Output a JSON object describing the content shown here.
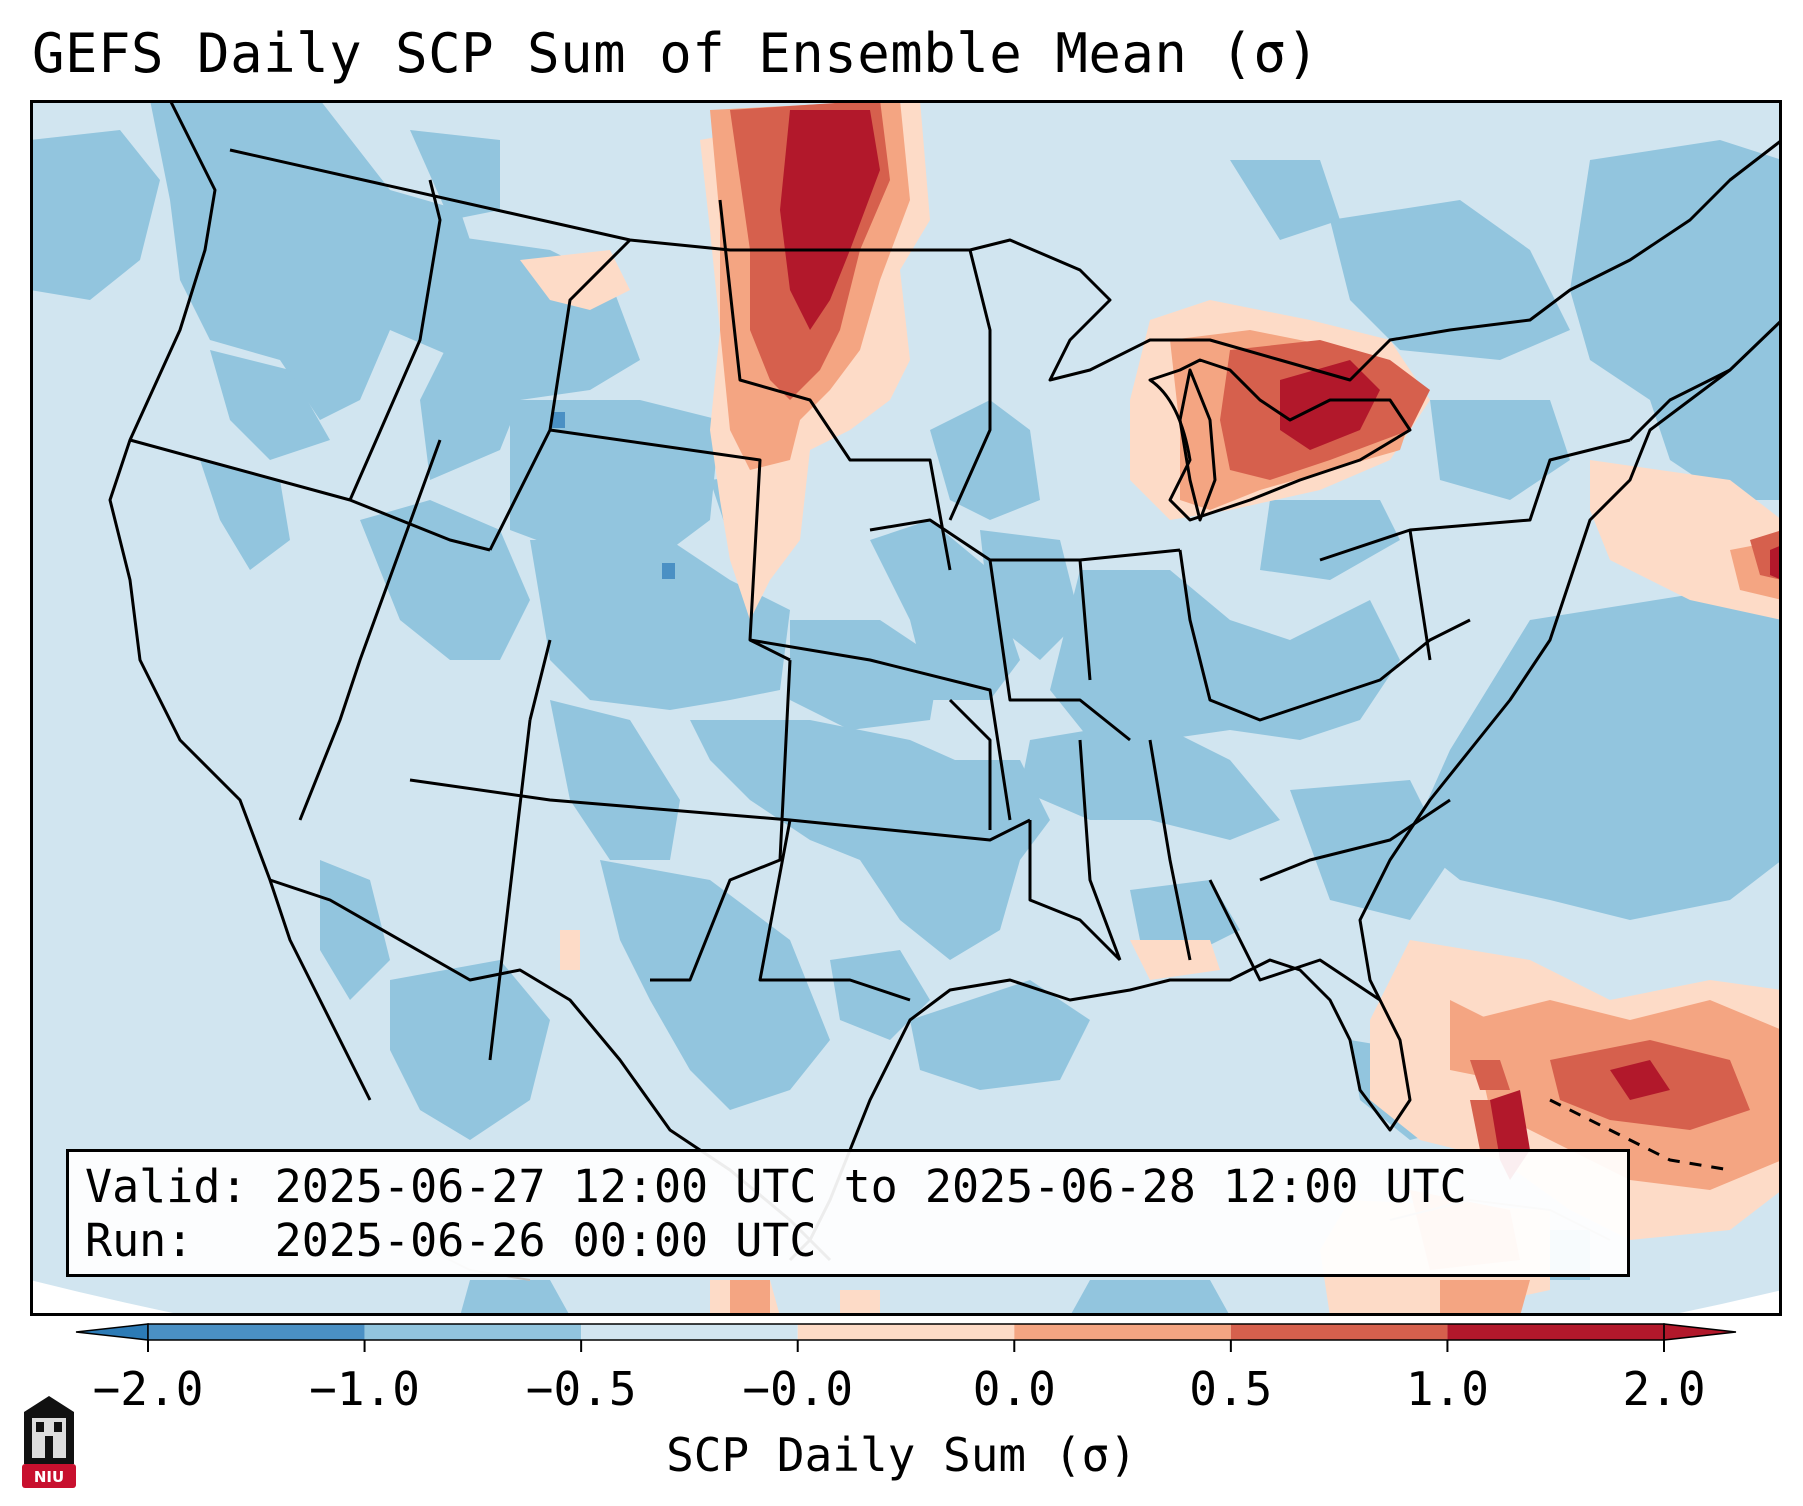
{
  "title": "GEFS Daily SCP Sum of Ensemble Mean (σ)",
  "info": {
    "valid_line": "Valid: 2025-06-27 12:00 UTC to 2025-06-28 12:00 UTC",
    "run_line": "Run:   2025-06-26 00:00 UTC"
  },
  "colorbar": {
    "label": "SCP Daily Sum (σ)",
    "ticks": [
      "−2.0",
      "−1.0",
      "−0.5",
      "−0.0",
      "0.0",
      "0.5",
      "1.0",
      "2.0"
    ],
    "colors": [
      "#2c7bb6",
      "#4a90c4",
      "#92c5de",
      "#d1e5f0",
      "#fddbc7",
      "#f4a582",
      "#d6604d",
      "#b2182b"
    ],
    "under_color": "#2c7bb6",
    "over_color": "#b2182b"
  },
  "legend_colors": {
    "background_field": "#d1e5f0",
    "frame": "#000000"
  },
  "logo": {
    "text": "NIU",
    "color": "#c8102e"
  }
}
